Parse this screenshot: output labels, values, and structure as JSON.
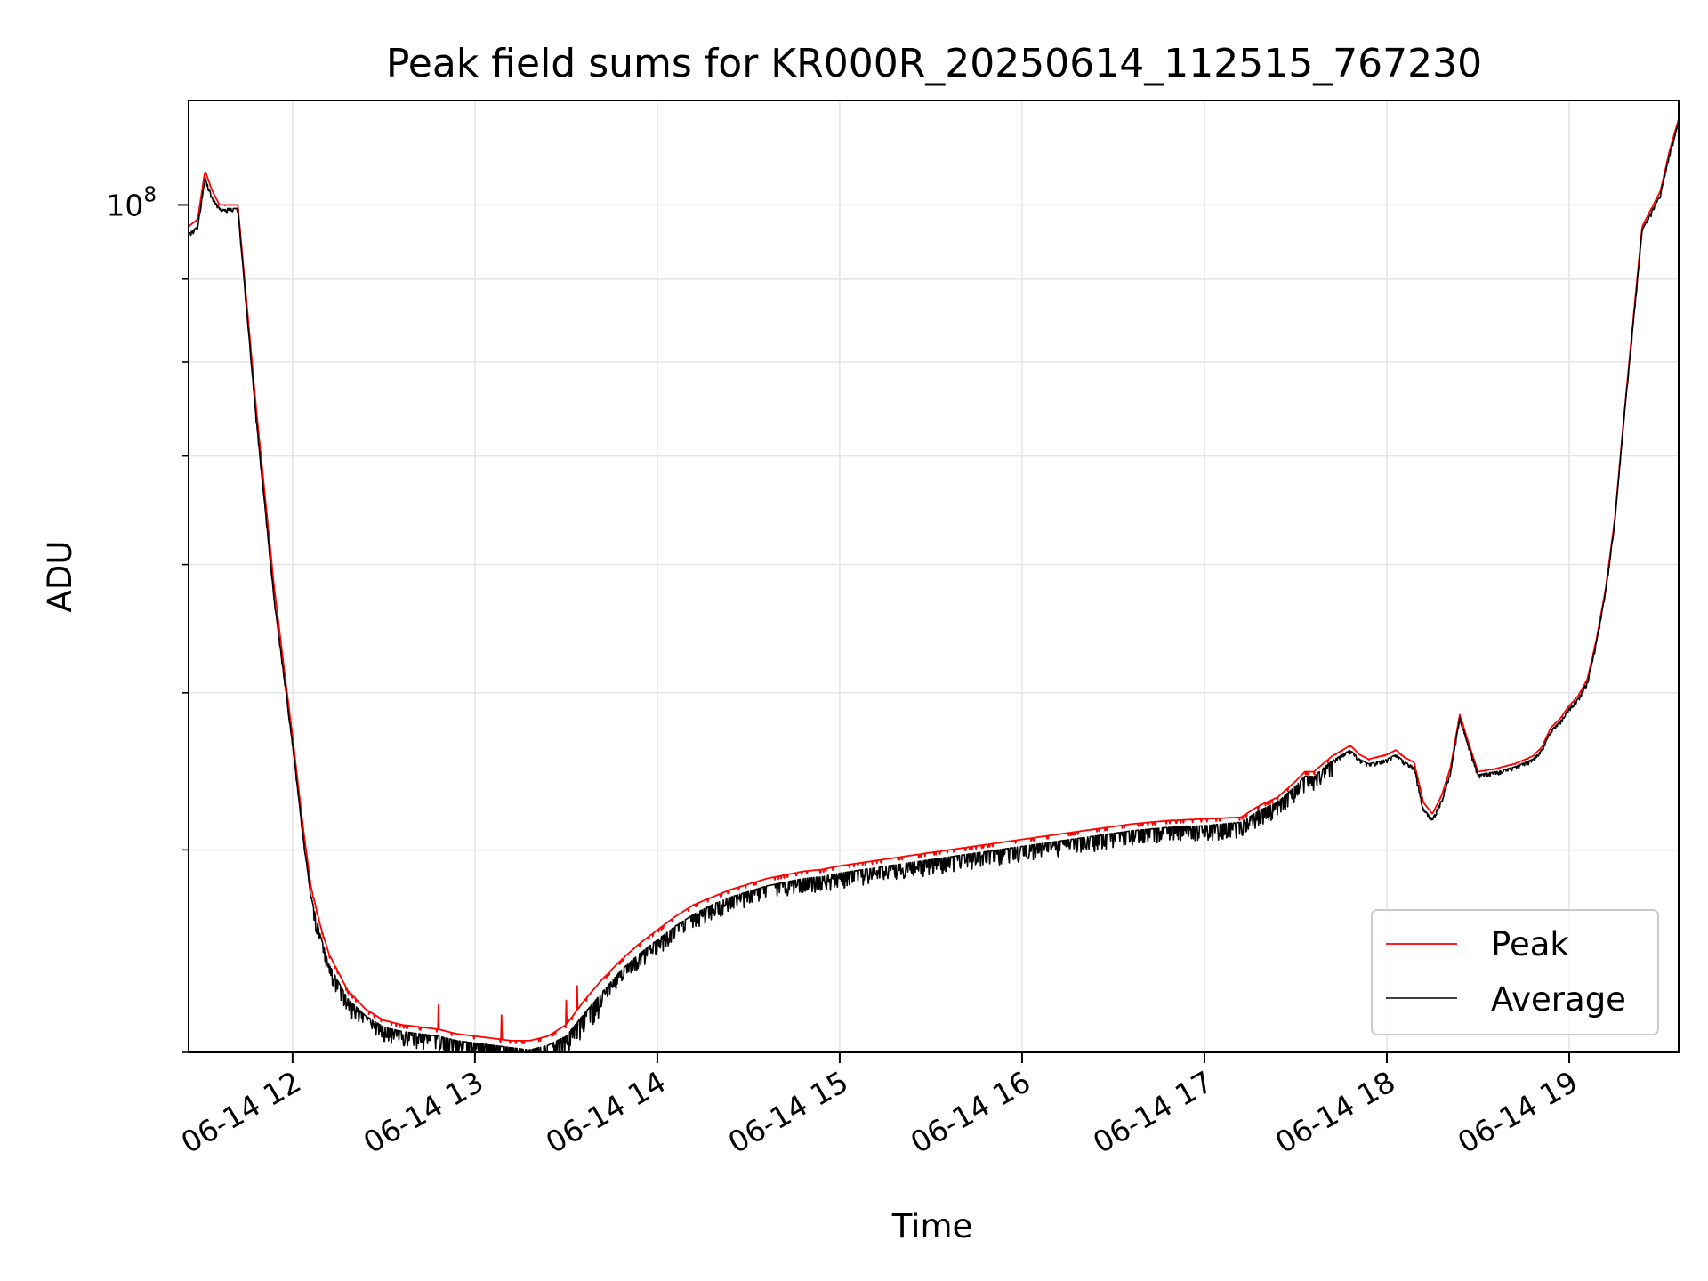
{
  "chart_data": {
    "type": "line",
    "title": "Peak field sums for KR000R_20250614_112515_767230",
    "xlabel": "Time",
    "ylabel": "ADU",
    "yscale": "log",
    "xlim": [
      11.43,
      19.6
    ],
    "ylim": [
      30000000,
      116000000
    ],
    "x_tick_values": [
      12,
      13,
      14,
      15,
      16,
      17,
      18,
      19
    ],
    "x_tick_labels": [
      "06-14 12",
      "06-14 13",
      "06-14 14",
      "06-14 15",
      "06-14 16",
      "06-14 17",
      "06-14 18",
      "06-14 19"
    ],
    "y_major_ticks": [
      {
        "value": 100000000,
        "base": "10",
        "exp": "8"
      }
    ],
    "y_minor_ticks": [
      30000000,
      40000000,
      50000000,
      60000000,
      70000000,
      80000000,
      90000000
    ],
    "grid": true,
    "legend": {
      "position": "lower-right"
    },
    "series": [
      {
        "name": "Peak",
        "color": "#ff0000",
        "x": [
          11.43,
          11.48,
          11.52,
          11.56,
          11.6,
          11.65,
          11.7,
          11.8,
          11.9,
          11.97,
          12.0,
          12.05,
          12.1,
          12.15,
          12.2,
          12.3,
          12.4,
          12.5,
          12.6,
          12.7,
          12.8,
          12.9,
          13.0,
          13.1,
          13.2,
          13.3,
          13.4,
          13.5,
          13.6,
          13.7,
          13.8,
          13.9,
          14.0,
          14.1,
          14.2,
          14.3,
          14.4,
          14.5,
          14.6,
          14.7,
          14.8,
          14.9,
          15.0,
          15.2,
          15.4,
          15.6,
          15.8,
          16.0,
          16.2,
          16.4,
          16.6,
          16.8,
          17.0,
          17.2,
          17.3,
          17.4,
          17.5,
          17.55,
          17.6,
          17.7,
          17.8,
          17.85,
          17.9,
          18.0,
          18.05,
          18.1,
          18.15,
          18.2,
          18.25,
          18.3,
          18.35,
          18.4,
          18.45,
          18.5,
          18.6,
          18.7,
          18.8,
          18.85,
          18.9,
          18.95,
          19.0,
          19.05,
          19.1,
          19.15,
          19.2,
          19.25,
          19.3,
          19.4,
          19.5,
          19.55,
          19.6
        ],
        "y": [
          97000000,
          98000000,
          105000000,
          102000000,
          100000000,
          100000000,
          100000000,
          75000000,
          58000000,
          50000000,
          47000000,
          42000000,
          38000000,
          36000000,
          34500000,
          32800000,
          31900000,
          31400000,
          31200000,
          31100000,
          31000000,
          30800000,
          30700000,
          30600000,
          30500000,
          30500000,
          30700000,
          31200000,
          32300000,
          33300000,
          34200000,
          35000000,
          35700000,
          36400000,
          37000000,
          37400000,
          37800000,
          38100000,
          38400000,
          38600000,
          38800000,
          38900000,
          39100000,
          39400000,
          39700000,
          40000000,
          40300000,
          40600000,
          40900000,
          41200000,
          41500000,
          41700000,
          41800000,
          41900000,
          42600000,
          43100000,
          44100000,
          44700000,
          44700000,
          45700000,
          46400000,
          45800000,
          45500000,
          45800000,
          46100000,
          45600000,
          45300000,
          42800000,
          42100000,
          43200000,
          45000000,
          48500000,
          46500000,
          44700000,
          44900000,
          45200000,
          45700000,
          46300000,
          47600000,
          48200000,
          49100000,
          49800000,
          51000000,
          54000000,
          58000000,
          64000000,
          74000000,
          97000000,
          102000000,
          108000000,
          113000000
        ]
      },
      {
        "name": "Average",
        "color": "#000000",
        "x": [
          11.43,
          11.48,
          11.52,
          11.56,
          11.6,
          11.65,
          11.7,
          11.8,
          11.9,
          11.97,
          12.0,
          12.05,
          12.1,
          12.15,
          12.2,
          12.3,
          12.4,
          12.5,
          12.6,
          12.7,
          12.8,
          12.9,
          13.0,
          13.1,
          13.2,
          13.3,
          13.4,
          13.5,
          13.6,
          13.7,
          13.8,
          13.9,
          14.0,
          14.1,
          14.2,
          14.3,
          14.4,
          14.5,
          14.6,
          14.7,
          14.8,
          14.9,
          15.0,
          15.2,
          15.4,
          15.6,
          15.8,
          16.0,
          16.2,
          16.4,
          16.6,
          16.8,
          17.0,
          17.2,
          17.3,
          17.4,
          17.5,
          17.55,
          17.6,
          17.7,
          17.8,
          17.85,
          17.9,
          18.0,
          18.05,
          18.1,
          18.15,
          18.2,
          18.25,
          18.3,
          18.35,
          18.4,
          18.45,
          18.5,
          18.6,
          18.7,
          18.8,
          18.85,
          18.9,
          18.95,
          19.0,
          19.05,
          19.1,
          19.15,
          19.2,
          19.25,
          19.3,
          19.4,
          19.5,
          19.55,
          19.6
        ],
        "y": [
          96000000,
          97000000,
          104000000,
          101000000,
          99500000,
          99500000,
          99500000,
          74000000,
          57000000,
          49500000,
          46500000,
          41500000,
          37500000,
          35500000,
          34000000,
          32400000,
          31600000,
          31100000,
          30900000,
          30800000,
          30700000,
          30500000,
          30400000,
          30300000,
          30200000,
          30100000,
          30300000,
          30700000,
          31700000,
          32700000,
          33700000,
          34500000,
          35200000,
          35900000,
          36500000,
          37000000,
          37400000,
          37700000,
          38000000,
          38200000,
          38400000,
          38500000,
          38700000,
          39000000,
          39300000,
          39600000,
          39900000,
          40200000,
          40500000,
          40800000,
          41100000,
          41300000,
          41400000,
          41600000,
          42300000,
          42800000,
          43800000,
          44400000,
          44400000,
          45400000,
          46100000,
          45500000,
          45200000,
          45500000,
          45800000,
          45300000,
          45000000,
          42400000,
          41800000,
          42900000,
          44700000,
          48300000,
          46300000,
          44500000,
          44700000,
          45000000,
          45500000,
          46100000,
          47400000,
          48000000,
          48900000,
          49600000,
          50800000,
          53800000,
          57800000,
          63800000,
          73800000,
          96500000,
          101500000,
          107500000,
          112500000
        ]
      }
    ]
  }
}
